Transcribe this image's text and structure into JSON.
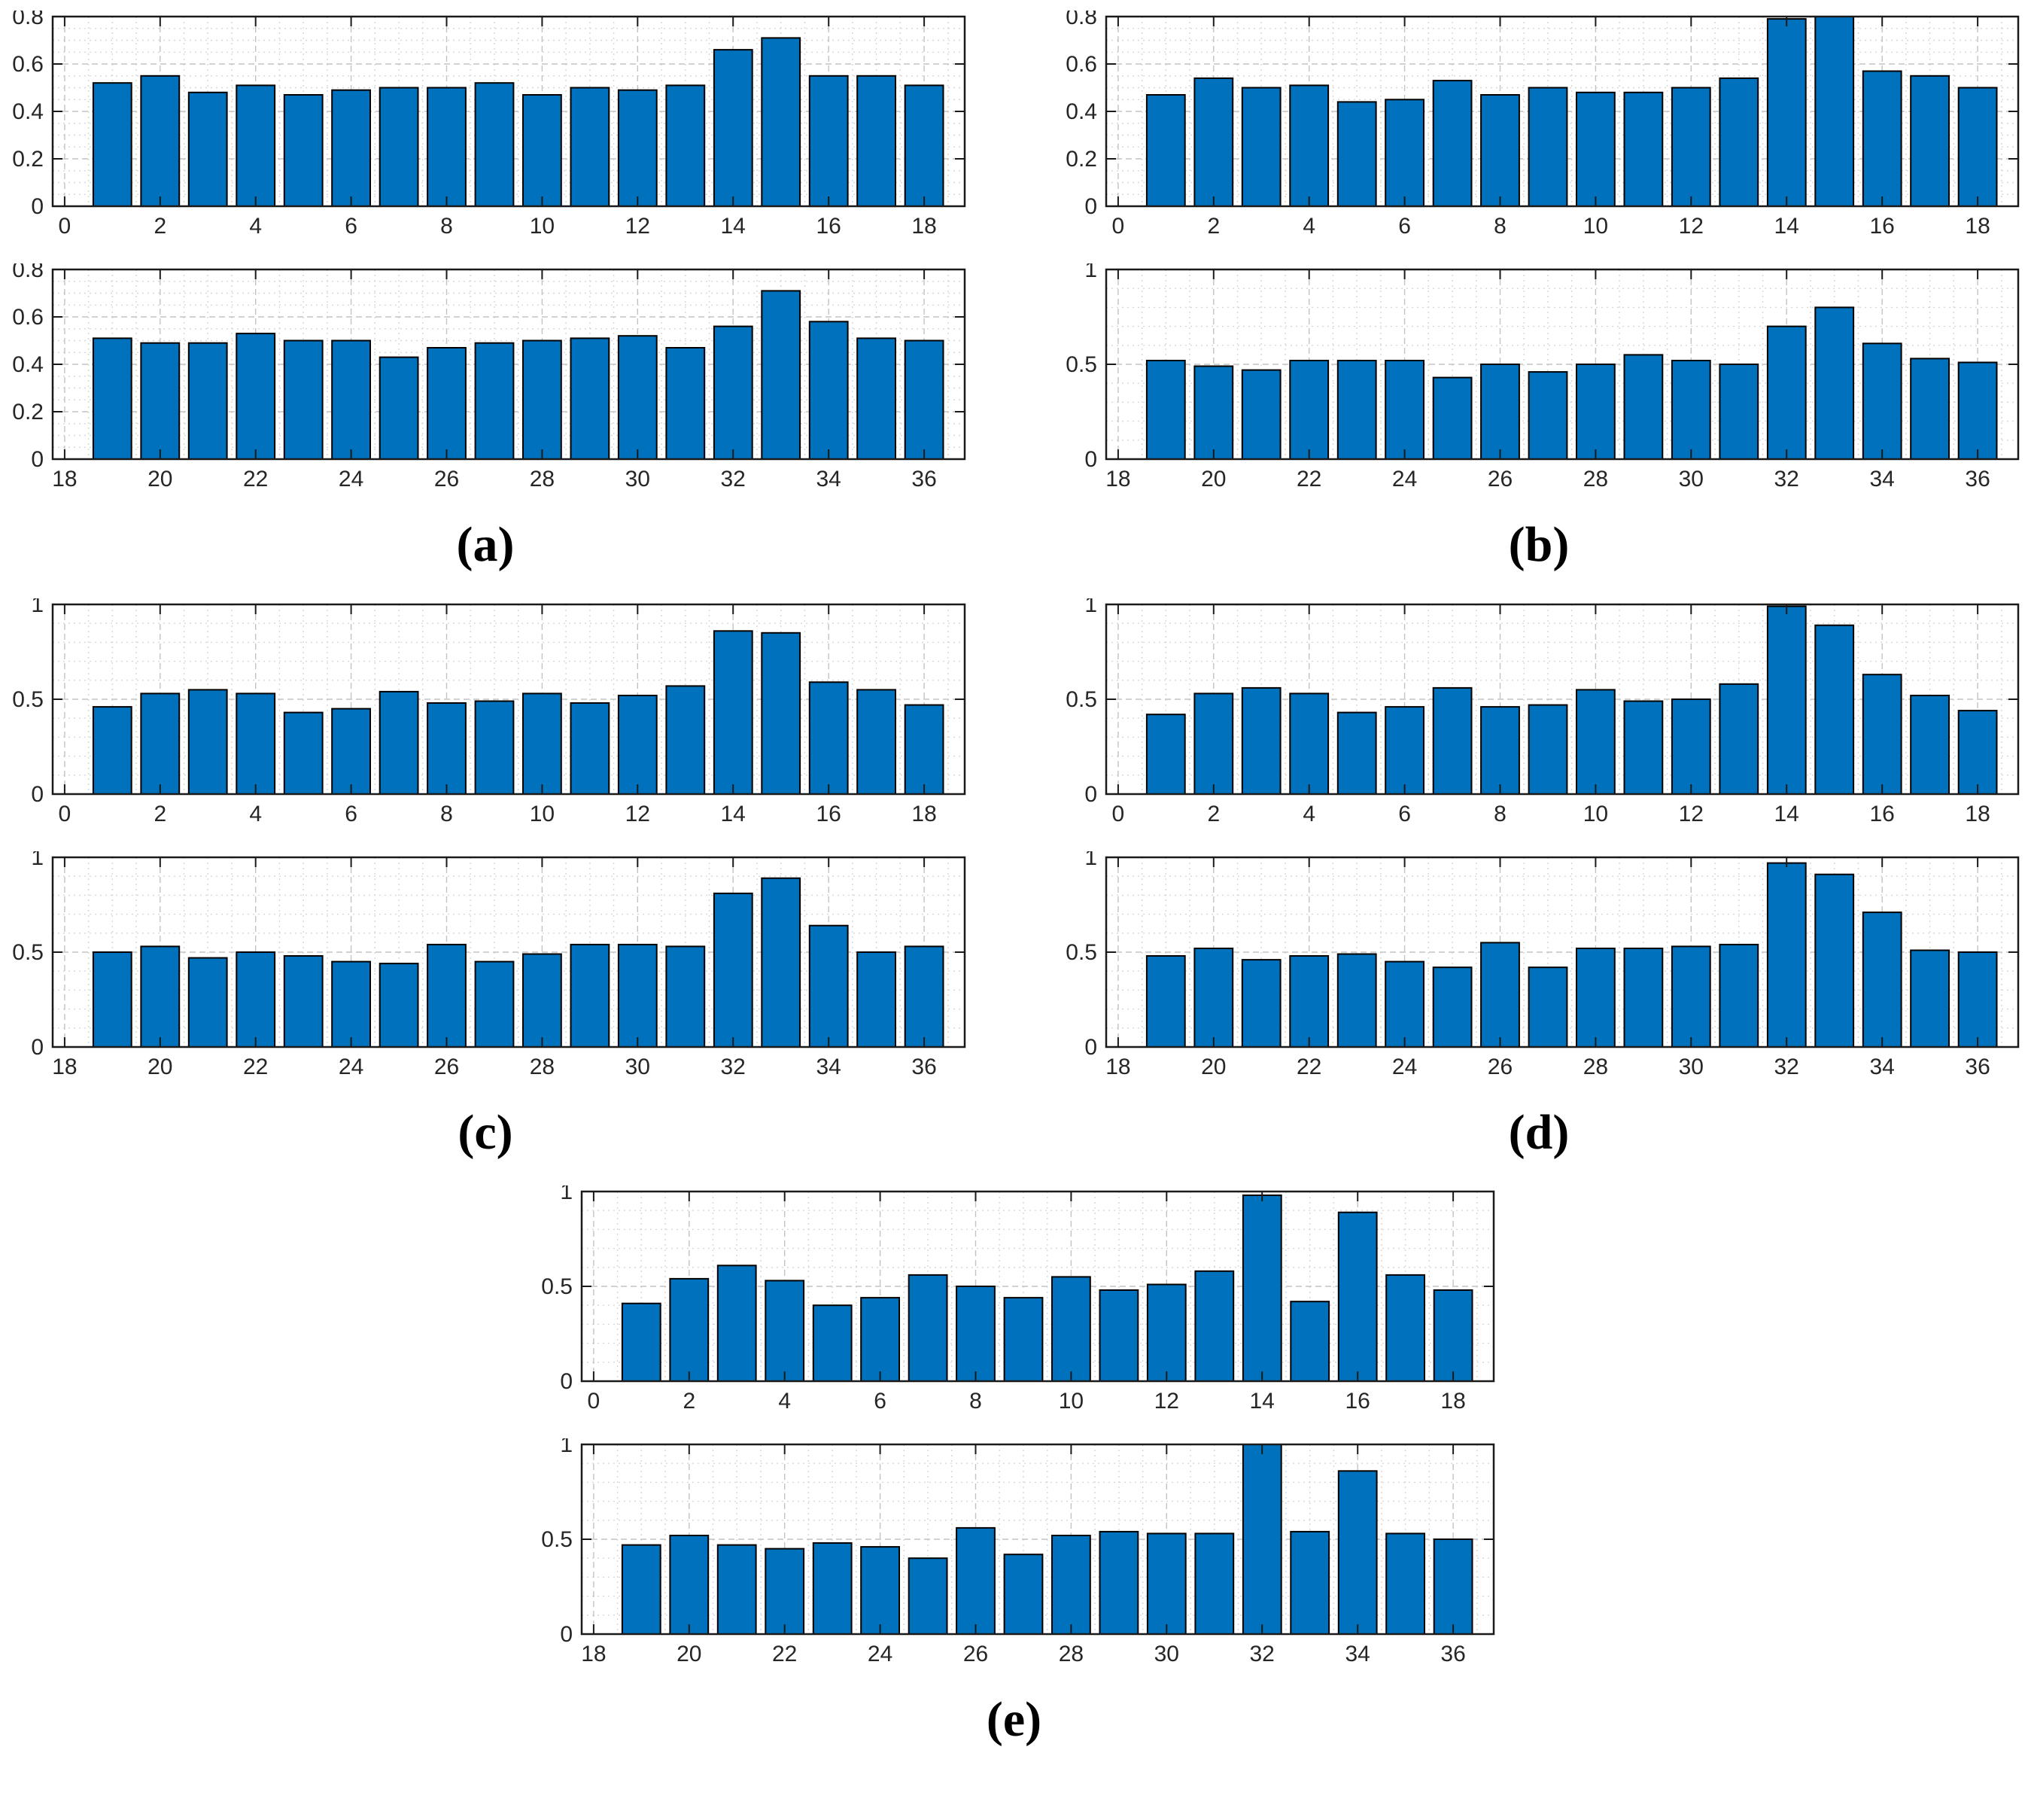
{
  "style": {
    "bar_color": "#0072BD",
    "bar_edge_color": "#000000",
    "axis_color": "#1a1a1a",
    "tick_label_color": "#262626",
    "grid_major_color": "#c3c3c3",
    "grid_minor_color": "#d7d7d7",
    "bar_width": 0.8
  },
  "chart_data": [
    {
      "id": "a",
      "caption": "(a)",
      "type": "bar",
      "panels": [
        {
          "x_start": 1,
          "xlim": [
            -0.25,
            18.85
          ],
          "xticks": [
            0,
            2,
            4,
            6,
            8,
            10,
            12,
            14,
            16,
            18
          ],
          "x_minor_step": 0.5,
          "ylim": [
            0,
            0.8
          ],
          "yticks": [
            0,
            0.2,
            0.4,
            0.6,
            0.8
          ],
          "y_minor_step": 0.05,
          "values": [
            0.52,
            0.55,
            0.48,
            0.51,
            0.47,
            0.49,
            0.5,
            0.5,
            0.52,
            0.47,
            0.5,
            0.49,
            0.51,
            0.66,
            0.71,
            0.55,
            0.55,
            0.51
          ]
        },
        {
          "x_start": 19,
          "xlim": [
            17.75,
            36.85
          ],
          "xticks": [
            18,
            20,
            22,
            24,
            26,
            28,
            30,
            32,
            34,
            36
          ],
          "x_minor_step": 0.5,
          "ylim": [
            0,
            0.8
          ],
          "yticks": [
            0,
            0.2,
            0.4,
            0.6,
            0.8
          ],
          "y_minor_step": 0.05,
          "values": [
            0.51,
            0.49,
            0.49,
            0.53,
            0.5,
            0.5,
            0.43,
            0.47,
            0.49,
            0.5,
            0.51,
            0.52,
            0.47,
            0.56,
            0.71,
            0.58,
            0.51,
            0.5
          ]
        }
      ]
    },
    {
      "id": "b",
      "caption": "(b)",
      "type": "bar",
      "panels": [
        {
          "x_start": 1,
          "xlim": [
            -0.25,
            18.85
          ],
          "xticks": [
            0,
            2,
            4,
            6,
            8,
            10,
            12,
            14,
            16,
            18
          ],
          "x_minor_step": 0.5,
          "ylim": [
            0,
            0.8
          ],
          "yticks": [
            0,
            0.2,
            0.4,
            0.6,
            0.8
          ],
          "y_minor_step": 0.05,
          "values": [
            0.47,
            0.54,
            0.5,
            0.51,
            0.44,
            0.45,
            0.53,
            0.47,
            0.5,
            0.48,
            0.48,
            0.5,
            0.54,
            0.79,
            0.8,
            0.57,
            0.55,
            0.5
          ]
        },
        {
          "x_start": 19,
          "xlim": [
            17.75,
            36.85
          ],
          "xticks": [
            18,
            20,
            22,
            24,
            26,
            28,
            30,
            32,
            34,
            36
          ],
          "x_minor_step": 0.5,
          "ylim": [
            0,
            1
          ],
          "yticks": [
            0,
            0.5,
            1
          ],
          "y_minor_step": 0.1,
          "values": [
            0.52,
            0.49,
            0.47,
            0.52,
            0.52,
            0.52,
            0.43,
            0.5,
            0.46,
            0.5,
            0.55,
            0.52,
            0.5,
            0.7,
            0.8,
            0.61,
            0.53,
            0.51
          ]
        }
      ]
    },
    {
      "id": "c",
      "caption": "(c)",
      "type": "bar",
      "panels": [
        {
          "x_start": 1,
          "xlim": [
            -0.25,
            18.85
          ],
          "xticks": [
            0,
            2,
            4,
            6,
            8,
            10,
            12,
            14,
            16,
            18
          ],
          "x_minor_step": 0.5,
          "ylim": [
            0,
            1
          ],
          "yticks": [
            0,
            0.5,
            1
          ],
          "y_minor_step": 0.1,
          "values": [
            0.46,
            0.53,
            0.55,
            0.53,
            0.43,
            0.45,
            0.54,
            0.48,
            0.49,
            0.53,
            0.48,
            0.52,
            0.57,
            0.86,
            0.85,
            0.59,
            0.55,
            0.47
          ]
        },
        {
          "x_start": 19,
          "xlim": [
            17.75,
            36.85
          ],
          "xticks": [
            18,
            20,
            22,
            24,
            26,
            28,
            30,
            32,
            34,
            36
          ],
          "x_minor_step": 0.5,
          "ylim": [
            0,
            1
          ],
          "yticks": [
            0,
            0.5,
            1
          ],
          "y_minor_step": 0.1,
          "values": [
            0.5,
            0.53,
            0.47,
            0.5,
            0.48,
            0.45,
            0.44,
            0.54,
            0.45,
            0.49,
            0.54,
            0.54,
            0.53,
            0.81,
            0.89,
            0.64,
            0.5,
            0.53
          ]
        }
      ]
    },
    {
      "id": "d",
      "caption": "(d)",
      "type": "bar",
      "panels": [
        {
          "x_start": 1,
          "xlim": [
            -0.25,
            18.85
          ],
          "xticks": [
            0,
            2,
            4,
            6,
            8,
            10,
            12,
            14,
            16,
            18
          ],
          "x_minor_step": 0.5,
          "ylim": [
            0,
            1
          ],
          "yticks": [
            0,
            0.5,
            1
          ],
          "y_minor_step": 0.1,
          "values": [
            0.42,
            0.53,
            0.56,
            0.53,
            0.43,
            0.46,
            0.56,
            0.46,
            0.47,
            0.55,
            0.49,
            0.5,
            0.58,
            0.99,
            0.89,
            0.63,
            0.52,
            0.44
          ]
        },
        {
          "x_start": 19,
          "xlim": [
            17.75,
            36.85
          ],
          "xticks": [
            18,
            20,
            22,
            24,
            26,
            28,
            30,
            32,
            34,
            36
          ],
          "x_minor_step": 0.5,
          "ylim": [
            0,
            1
          ],
          "yticks": [
            0,
            0.5,
            1
          ],
          "y_minor_step": 0.1,
          "values": [
            0.48,
            0.52,
            0.46,
            0.48,
            0.49,
            0.45,
            0.42,
            0.55,
            0.42,
            0.52,
            0.52,
            0.53,
            0.54,
            0.97,
            0.91,
            0.71,
            0.51,
            0.5
          ]
        }
      ]
    },
    {
      "id": "e",
      "caption": "(e)",
      "type": "bar",
      "panels": [
        {
          "x_start": 1,
          "xlim": [
            -0.25,
            18.85
          ],
          "xticks": [
            0,
            2,
            4,
            6,
            8,
            10,
            12,
            14,
            16,
            18
          ],
          "x_minor_step": 0.5,
          "ylim": [
            0,
            1
          ],
          "yticks": [
            0,
            0.5,
            1
          ],
          "y_minor_step": 0.1,
          "values": [
            0.41,
            0.54,
            0.61,
            0.53,
            0.4,
            0.44,
            0.56,
            0.5,
            0.44,
            0.55,
            0.48,
            0.51,
            0.58,
            0.98,
            0.42,
            0.89,
            0.56,
            0.48
          ]
        },
        {
          "x_start": 19,
          "xlim": [
            17.75,
            36.85
          ],
          "xticks": [
            18,
            20,
            22,
            24,
            26,
            28,
            30,
            32,
            34,
            36
          ],
          "x_minor_step": 0.5,
          "ylim": [
            0,
            1
          ],
          "yticks": [
            0,
            0.5,
            1
          ],
          "y_minor_step": 0.1,
          "values": [
            0.47,
            0.52,
            0.47,
            0.45,
            0.48,
            0.46,
            0.4,
            0.56,
            0.42,
            0.52,
            0.54,
            0.53,
            0.53,
            1.0,
            0.54,
            0.86,
            0.53,
            0.5
          ]
        }
      ]
    }
  ]
}
